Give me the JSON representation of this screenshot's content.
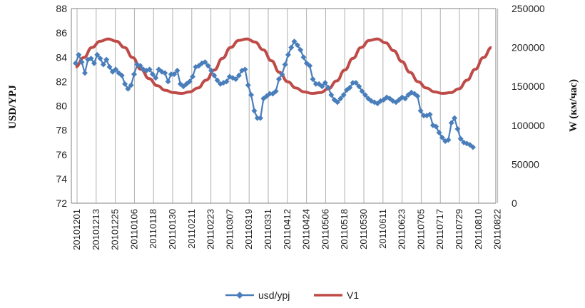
{
  "chart_data": {
    "type": "line",
    "title": "",
    "ylabel_left": "USD/YPJ",
    "ylabel_right": "W (км/час)",
    "y_left_lim": [
      72,
      88
    ],
    "y_left_ticks": [
      "72",
      "74",
      "76",
      "78",
      "80",
      "82",
      "84",
      "86",
      "88"
    ],
    "y_right_lim": [
      0,
      250000
    ],
    "y_right_ticks": [
      "0",
      "50000",
      "100000",
      "150000",
      "200000",
      "250000"
    ],
    "x_ticks": [
      "20101201",
      "20101213",
      "20101225",
      "20110106",
      "20110118",
      "20110130",
      "20110211",
      "20110223",
      "20110307",
      "20110319",
      "20110331",
      "20110412",
      "20110424",
      "20110506",
      "20110518",
      "20110530",
      "20110611",
      "20110623",
      "20110705",
      "20110717",
      "20110729",
      "20110810",
      "20110822"
    ],
    "grid": "vertical",
    "legend_position": "bottom",
    "colors": {
      "usd_ypj": "#4a7ebb",
      "V1": "#be4b48",
      "grid": "#b0b0b0",
      "axis": "#808080"
    },
    "series": [
      {
        "name": "usd/ypj",
        "axis": "left",
        "marker": "diamond",
        "values": [
          83.5,
          84.2,
          83.6,
          82.7,
          83.8,
          83.9,
          83.5,
          84.2,
          83.9,
          83.4,
          83.8,
          83.2,
          82.8,
          83.0,
          82.7,
          82.5,
          81.8,
          81.4,
          81.7,
          82.6,
          83.4,
          83.3,
          83.0,
          82.9,
          83.0,
          82.6,
          82.3,
          83.0,
          82.8,
          82.7,
          82.0,
          82.6,
          82.6,
          82.9,
          81.8,
          81.6,
          81.8,
          82.0,
          82.4,
          83.2,
          83.3,
          83.5,
          83.6,
          83.3,
          82.9,
          82.5,
          82.1,
          81.8,
          81.9,
          82.0,
          82.4,
          82.3,
          82.2,
          82.5,
          82.9,
          83.0,
          81.7,
          80.9,
          79.6,
          79.0,
          79.0,
          80.6,
          80.8,
          81.0,
          81.0,
          81.2,
          82.2,
          82.6,
          83.4,
          84.2,
          84.8,
          85.3,
          85.0,
          84.6,
          84.0,
          83.5,
          83.3,
          82.2,
          81.8,
          81.8,
          81.6,
          81.9,
          81.5,
          80.9,
          80.5,
          80.3,
          80.6,
          80.9,
          81.3,
          81.5,
          81.9,
          81.9,
          81.6,
          81.2,
          80.9,
          80.6,
          80.4,
          80.3,
          80.2,
          80.4,
          80.5,
          80.7,
          80.6,
          80.4,
          80.3,
          80.5,
          80.7,
          80.6,
          80.9,
          81.1,
          81.0,
          80.8,
          79.6,
          79.2,
          79.2,
          79.3,
          78.4,
          78.3,
          77.8,
          77.4,
          77.1,
          77.2,
          78.6,
          79.0,
          78.1,
          77.3,
          77.0,
          76.9,
          76.8,
          76.6
        ]
      },
      {
        "name": "V1",
        "axis": "right",
        "values": [
          175000,
          187000,
          200000,
          208000,
          211000,
          208000,
          200000,
          187000,
          172000,
          160000,
          151000,
          145000,
          142000,
          141000,
          143000,
          148000,
          158000,
          171000,
          186000,
          200000,
          209000,
          211000,
          207000,
          197000,
          183000,
          168000,
          156000,
          148000,
          143000,
          141000,
          142000,
          147000,
          157000,
          171000,
          186000,
          200000,
          209000,
          211000,
          206000,
          196000,
          182000,
          168000,
          156000,
          148000,
          143000,
          141000,
          142000,
          147000,
          158000,
          172000,
          187000,
          200000
        ]
      }
    ]
  }
}
